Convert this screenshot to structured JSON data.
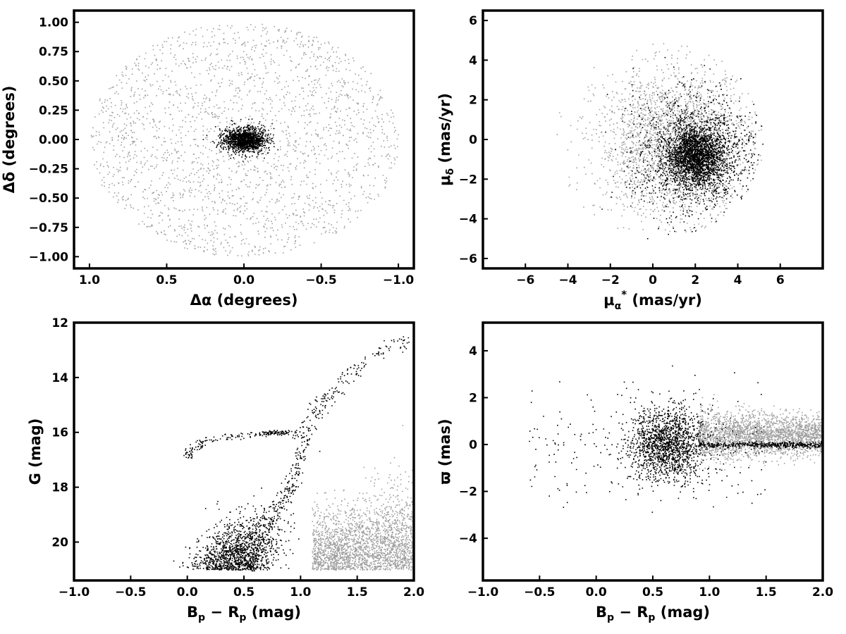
{
  "colors": {
    "member": "#000000",
    "field": "#a0a0a0",
    "frame": "#000000",
    "background": "#ffffff"
  },
  "chart_data": [
    {
      "id": "sky",
      "type": "scatter",
      "xlim": [
        1.1,
        -1.1
      ],
      "ylim": [
        -1.1,
        1.1
      ],
      "x_reversed": true,
      "xlabel": "Δα (degrees)",
      "ylabel": "Δδ (degrees)",
      "xticks": [
        1.0,
        0.5,
        0.0,
        -0.5,
        -1.0
      ],
      "xtick_labels": [
        "1.0",
        "0.5",
        "0.0",
        "−0.5",
        "−1.0"
      ],
      "yticks": [
        -1.0,
        -0.75,
        -0.5,
        -0.25,
        0.0,
        0.25,
        0.5,
        0.75,
        1.0
      ],
      "ytick_labels": [
        "−1.00",
        "−0.75",
        "−0.50",
        "−0.25",
        "0.00",
        "0.25",
        "0.50",
        "0.75",
        "1.00"
      ],
      "grid": false,
      "series": [
        {
          "role": "field",
          "color": "#a0a0a0",
          "distribution": "uniform disk",
          "center": [
            0,
            0
          ],
          "radius": 1.0,
          "n": 2200
        },
        {
          "role": "member",
          "color": "#000000",
          "distribution": "compact cluster",
          "center": [
            0,
            0
          ],
          "spread": [
            0.085,
            0.065
          ],
          "n": 1400
        }
      ]
    },
    {
      "id": "propermotion",
      "type": "scatter",
      "xlim": [
        -8,
        8
      ],
      "ylim": [
        -6.5,
        6.5
      ],
      "xlabel": "μα* (mas/yr)",
      "ylabel": "μδ (mas/yr)",
      "xticks": [
        -6,
        -4,
        -2,
        0,
        2,
        4,
        6
      ],
      "xtick_labels": [
        "−6",
        "−4",
        "−2",
        "0",
        "2",
        "4",
        "6"
      ],
      "yticks": [
        -6,
        -4,
        -2,
        0,
        2,
        4,
        6
      ],
      "ytick_labels": [
        "−6",
        "−4",
        "−2",
        "0",
        "2",
        "4",
        "6"
      ],
      "grid": false,
      "series": [
        {
          "role": "field",
          "color": "#a0a0a0",
          "distribution": "broad cloud",
          "center": [
            1.5,
            -0.2
          ],
          "spread": [
            1.8,
            1.8
          ],
          "selection_radius": 5.0,
          "n": 2600
        },
        {
          "role": "member",
          "color": "#000000",
          "distribution": "dense clump",
          "center": [
            2.0,
            -0.8
          ],
          "spread": [
            1.1,
            1.2
          ],
          "selection_radius": 5.0,
          "n": 3200
        }
      ]
    },
    {
      "id": "cmd",
      "type": "scatter",
      "xlim": [
        -1.0,
        2.0
      ],
      "ylim": [
        12,
        21.4
      ],
      "y_reversed": true,
      "xlabel": "Bp − Rp (mag)",
      "ylabel": "G (mag)",
      "xticks": [
        -1.0,
        -0.5,
        0.0,
        0.5,
        1.0,
        1.5,
        2.0
      ],
      "xtick_labels": [
        "−1.0",
        "−0.5",
        "0.0",
        "0.5",
        "1.0",
        "1.5",
        "2.0"
      ],
      "yticks": [
        12,
        14,
        16,
        18,
        20
      ],
      "ytick_labels": [
        "12",
        "14",
        "16",
        "18",
        "20"
      ],
      "grid": false,
      "features": {
        "main_sequence": [
          [
            0.55,
            20.9
          ],
          [
            0.65,
            19.8
          ],
          [
            0.75,
            19.0
          ],
          [
            0.85,
            18.4
          ],
          [
            0.93,
            17.8
          ],
          [
            0.98,
            17.1
          ],
          [
            1.02,
            16.4
          ],
          [
            1.07,
            15.7
          ],
          [
            1.15,
            15.1
          ],
          [
            1.25,
            14.6
          ],
          [
            1.4,
            14.0
          ],
          [
            1.55,
            13.4
          ],
          [
            1.75,
            12.9
          ],
          [
            1.95,
            12.7
          ]
        ],
        "horizontal_branch": [
          [
            0.0,
            16.9
          ],
          [
            0.05,
            16.6
          ],
          [
            0.15,
            16.3
          ],
          [
            0.3,
            16.15
          ],
          [
            0.5,
            16.1
          ],
          [
            0.7,
            16.0
          ]
        ],
        "red_clump": [
          0.78,
          16.0
        ]
      },
      "series": [
        {
          "role": "field",
          "color": "#a0a0a0",
          "region": "red plume",
          "n": 2400
        },
        {
          "role": "member",
          "color": "#000000",
          "region": "cluster sequences",
          "n": 3600
        }
      ]
    },
    {
      "id": "parallax",
      "type": "scatter",
      "xlim": [
        -1.0,
        2.0
      ],
      "ylim": [
        -5.8,
        5.2
      ],
      "xlabel": "Bp − Rp (mag)",
      "ylabel": "ϖ (mas)",
      "xticks": [
        -1.0,
        -0.5,
        0.0,
        0.5,
        1.0,
        1.5,
        2.0
      ],
      "xtick_labels": [
        "−1.0",
        "−0.5",
        "0.0",
        "0.5",
        "1.0",
        "1.5",
        "2.0"
      ],
      "yticks": [
        -4,
        -2,
        0,
        2,
        4
      ],
      "ytick_labels": [
        "−4",
        "−2",
        "0",
        "2",
        "4"
      ],
      "grid": false,
      "series": [
        {
          "role": "field",
          "color": "#a0a0a0",
          "region": "red tail",
          "center": 0.4,
          "n": 2400
        },
        {
          "role": "member",
          "color": "#000000",
          "region": "cluster parallax",
          "center": 0.0,
          "n": 3600
        }
      ]
    }
  ]
}
